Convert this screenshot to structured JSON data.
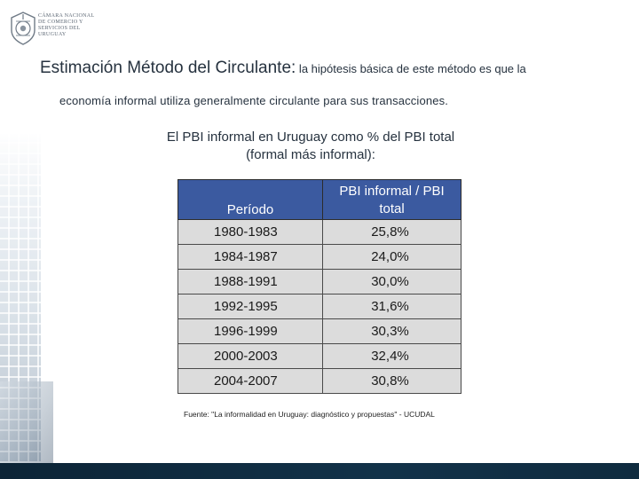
{
  "logo": {
    "text_lines": [
      "Cámara Nacional",
      "de Comercio y",
      "Servicios del",
      "Uruguay"
    ]
  },
  "heading": {
    "title": "Estimación Método del Circulante:",
    "text_part1": " la hipótesis básica de este método es que la",
    "text_part2": "economía informal utiliza generalmente circulante para sus transacciones."
  },
  "subtitle": {
    "line1": "El PBI informal en Uruguay como % del PBI total",
    "line2": "(formal más informal):"
  },
  "table": {
    "headers": [
      "Período",
      "PBI informal / PBI total"
    ],
    "rows": [
      [
        "1980-1983",
        "25,8%"
      ],
      [
        "1984-1987",
        "24,0%"
      ],
      [
        "1988-1991",
        "30,0%"
      ],
      [
        "1992-1995",
        "31,6%"
      ],
      [
        "1996-1999",
        "30,3%"
      ],
      [
        "2000-2003",
        "32,4%"
      ],
      [
        "2004-2007",
        "30,8%"
      ]
    ]
  },
  "source_note": "Fuente: \"La informalidad en Uruguay: diagnóstico y propuestas\" - UCUDAL",
  "colors": {
    "header_bg": "#3b5aa0",
    "cell_bg": "#dcdcdc",
    "footer_bar": "#123249"
  }
}
